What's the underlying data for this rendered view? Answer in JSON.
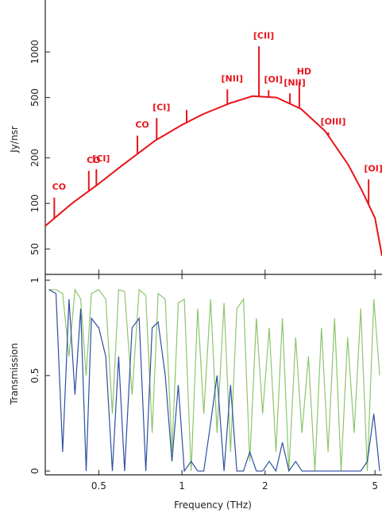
{
  "chart_data": [
    {
      "type": "line",
      "ylabel": "Jy/nsr",
      "yscale": "log",
      "xscale": "log",
      "xlim": [
        0.32,
        5.3
      ],
      "ylim": [
        34,
        2200
      ],
      "yticks": [
        50,
        100,
        200,
        500,
        1000
      ],
      "x": [
        0.32,
        0.4,
        0.5,
        0.6,
        0.8,
        1,
        1.2,
        1.5,
        1.8,
        2.2,
        2.7,
        3.3,
        4,
        4.5,
        5,
        5.3
      ],
      "series": [
        {
          "color": "#e8141b",
          "values": [
            71,
            100,
            135,
            175,
            260,
            330,
            390,
            460,
            510,
            500,
            420,
            300,
            180,
            120,
            80,
            45
          ]
        }
      ],
      "lines": {
        "labels": [
          "CO",
          "CO",
          "[CI]",
          "CO",
          "[CI]",
          null,
          "[NII]",
          "[CII]",
          "[OI]",
          "[NII]",
          "HD",
          "[OIII]",
          "[OI]"
        ],
        "freqs": [
          0.345,
          0.46,
          0.49,
          0.69,
          0.81,
          1.04,
          1.46,
          1.9,
          2.06,
          2.46,
          2.66,
          3.39,
          4.74
        ],
        "peaks": [
          109,
          164,
          168,
          280,
          366,
          413,
          566,
          1088,
          559,
          533,
          631,
          294,
          144
        ],
        "color": "#e8141b"
      }
    },
    {
      "type": "line",
      "ylabel": "Transmission",
      "xlabel": "Frequency (THz)",
      "xscale": "log",
      "xlim": [
        0.32,
        5.3
      ],
      "xticks": [
        0.5,
        1,
        2,
        5
      ],
      "ylim": [
        -0.02,
        1.03
      ],
      "yticks": [
        0,
        0.5,
        1
      ],
      "x": [
        0.33,
        0.35,
        0.37,
        0.39,
        0.41,
        0.43,
        0.45,
        0.47,
        0.5,
        0.53,
        0.56,
        0.59,
        0.62,
        0.66,
        0.7,
        0.74,
        0.78,
        0.82,
        0.87,
        0.92,
        0.97,
        1.02,
        1.08,
        1.14,
        1.2,
        1.27,
        1.34,
        1.42,
        1.5,
        1.58,
        1.67,
        1.76,
        1.86,
        1.96,
        2.07,
        2.19,
        2.31,
        2.44,
        2.58,
        2.72,
        2.87,
        3.03,
        3.2,
        3.38,
        3.57,
        3.77,
        3.98,
        4.2,
        4.44,
        4.69,
        4.95,
        5.2
      ],
      "series": [
        {
          "color": "#8cc56b",
          "values": [
            0.95,
            0.95,
            0.93,
            0.6,
            0.95,
            0.9,
            0.5,
            0.93,
            0.95,
            0.9,
            0.3,
            0.95,
            0.94,
            0.4,
            0.95,
            0.92,
            0.2,
            0.93,
            0.9,
            0.1,
            0.88,
            0.9,
            0,
            0.85,
            0.3,
            0.9,
            0.2,
            0.88,
            0.1,
            0.85,
            0.9,
            0.05,
            0.8,
            0.3,
            0.75,
            0.1,
            0.8,
            0,
            0.7,
            0.2,
            0.6,
            0,
            0.75,
            0.1,
            0.8,
            0,
            0.7,
            0.2,
            0.85,
            0,
            0.9,
            0.5
          ]
        },
        {
          "color": "#2f4fa0",
          "values": [
            0.95,
            0.93,
            0.1,
            0.9,
            0.4,
            0.85,
            0,
            0.8,
            0.75,
            0.6,
            0,
            0.6,
            0,
            0.75,
            0.8,
            0,
            0.75,
            0.78,
            0.5,
            0.05,
            0.45,
            0,
            0.05,
            0,
            0,
            0.25,
            0.5,
            0,
            0.45,
            0,
            0,
            0.1,
            0,
            0,
            0.05,
            0,
            0.15,
            0,
            0.05,
            0,
            0,
            0,
            0,
            0,
            0,
            0,
            0,
            0,
            0,
            0.05,
            0.3,
            0
          ]
        }
      ]
    }
  ]
}
